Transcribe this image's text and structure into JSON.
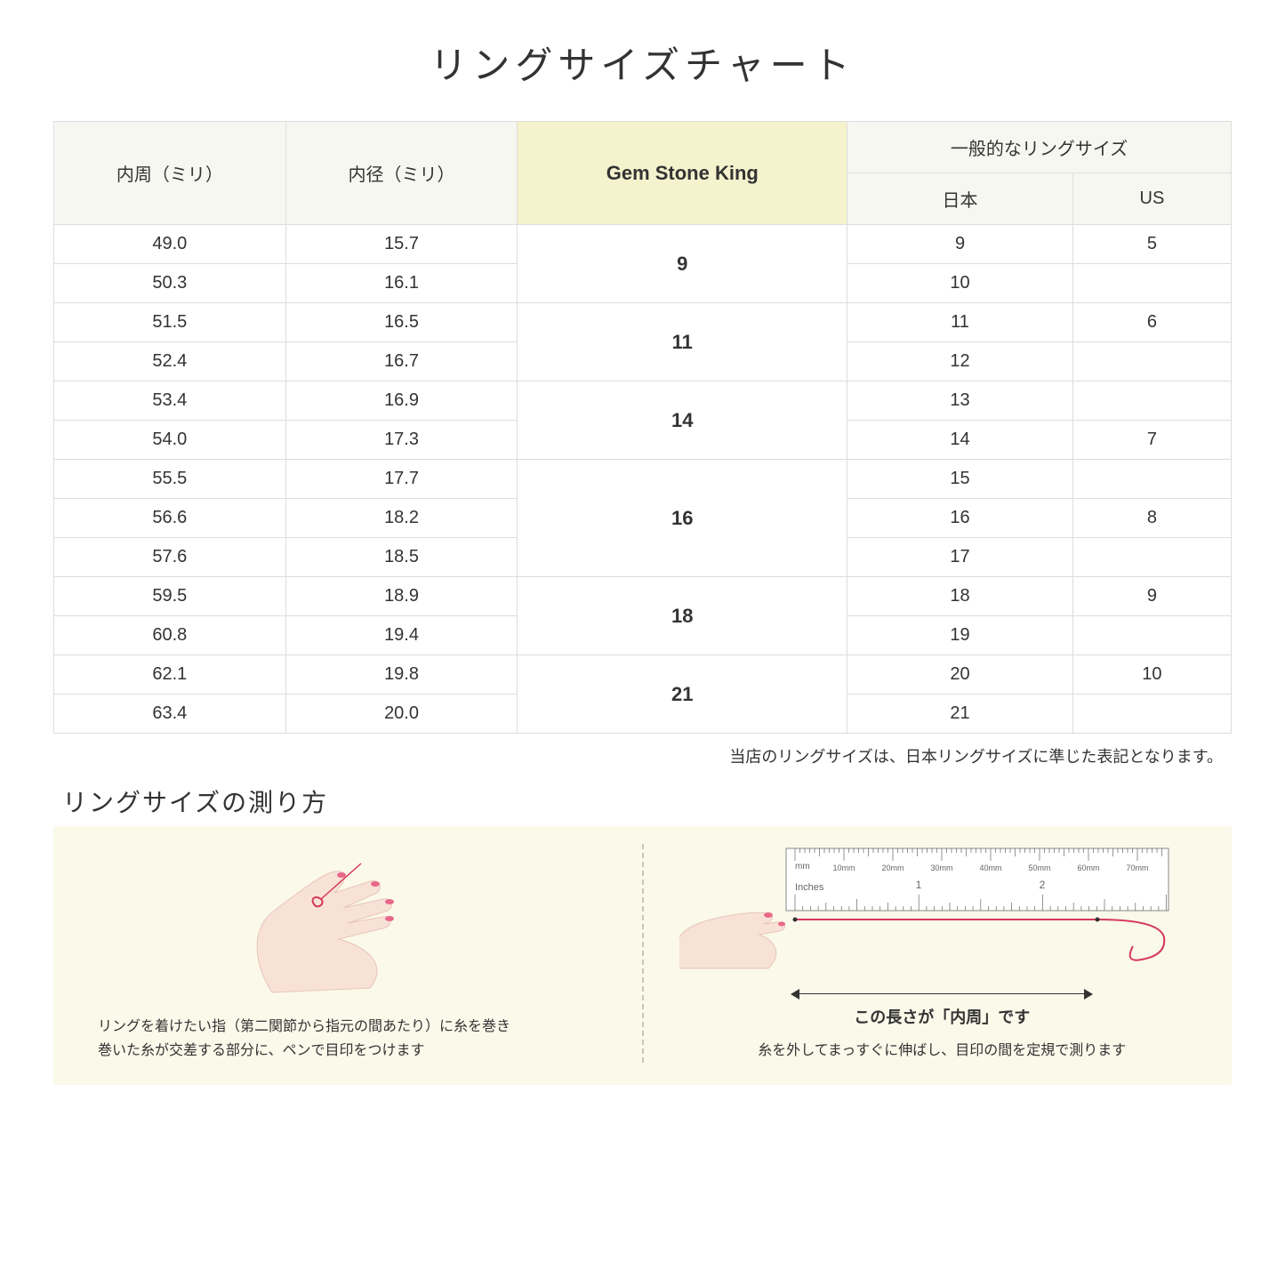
{
  "title": "リングサイズチャート",
  "table": {
    "headers": {
      "circumference": "内周（ミリ）",
      "diameter": "内径（ミリ）",
      "gsk": "Gem Stone King",
      "general_group": "一般的なリングサイズ",
      "japan": "日本",
      "us": "US"
    },
    "rows": [
      {
        "circ": "49.0",
        "dia": "15.7",
        "jp": "9",
        "us": "5"
      },
      {
        "circ": "50.3",
        "dia": "16.1",
        "jp": "10",
        "us": ""
      },
      {
        "circ": "51.5",
        "dia": "16.5",
        "jp": "11",
        "us": "6"
      },
      {
        "circ": "52.4",
        "dia": "16.7",
        "jp": "12",
        "us": ""
      },
      {
        "circ": "53.4",
        "dia": "16.9",
        "jp": "13",
        "us": ""
      },
      {
        "circ": "54.0",
        "dia": "17.3",
        "jp": "14",
        "us": "7"
      },
      {
        "circ": "55.5",
        "dia": "17.7",
        "jp": "15",
        "us": ""
      },
      {
        "circ": "56.6",
        "dia": "18.2",
        "jp": "16",
        "us": "8"
      },
      {
        "circ": "57.6",
        "dia": "18.5",
        "jp": "17",
        "us": ""
      },
      {
        "circ": "59.5",
        "dia": "18.9",
        "jp": "18",
        "us": "9"
      },
      {
        "circ": "60.8",
        "dia": "19.4",
        "jp": "19",
        "us": ""
      },
      {
        "circ": "62.1",
        "dia": "19.8",
        "jp": "20",
        "us": "10"
      },
      {
        "circ": "63.4",
        "dia": "20.0",
        "jp": "21",
        "us": ""
      }
    ],
    "gsk_groups": [
      {
        "label": "9",
        "span": 2
      },
      {
        "label": "11",
        "span": 2
      },
      {
        "label": "14",
        "span": 2
      },
      {
        "label": "16",
        "span": 3
      },
      {
        "label": "18",
        "span": 2
      },
      {
        "label": "21",
        "span": 2
      }
    ],
    "highlight_bg": "#f5f3cd",
    "header_bg": "#f7f7f2",
    "border_color": "#dddddd"
  },
  "note": "当店のリングサイズは、日本リングサイズに準じた表記となります。",
  "howto": {
    "title": "リングサイズの測り方",
    "panel1": {
      "caption": "リングを着けたい指（第二関節から指元の間あたり）に糸を巻き\n巻いた糸が交差する部分に、ペンで目印をつけます"
    },
    "panel2": {
      "measure_label": "この長さが「内周」です",
      "caption": "糸を外してまっすぐに伸ばし、目印の間を定規で測ります",
      "ruler_mm": "mm",
      "ruler_inches": "Inches",
      "ruler_mm_ticks": [
        "10mm",
        "20mm",
        "30mm",
        "40mm",
        "50mm",
        "60mm",
        "70mm"
      ],
      "ruler_inch_ticks": [
        "1",
        "2"
      ]
    },
    "bg_color": "#fbf9ea",
    "thread_color": "#d4385a",
    "skin_color": "#f8e2d8",
    "nail_color": "#e8688a"
  }
}
